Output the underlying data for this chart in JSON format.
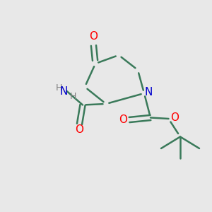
{
  "bg_color": "#e8e8e8",
  "bond_color": "#3a7a5a",
  "bond_width": 1.8,
  "atom_colors": {
    "O": "#ff0000",
    "N": "#0000cc",
    "C": "#3a7a5a",
    "H": "#808080"
  },
  "font_size_atom": 11,
  "font_size_h": 9
}
